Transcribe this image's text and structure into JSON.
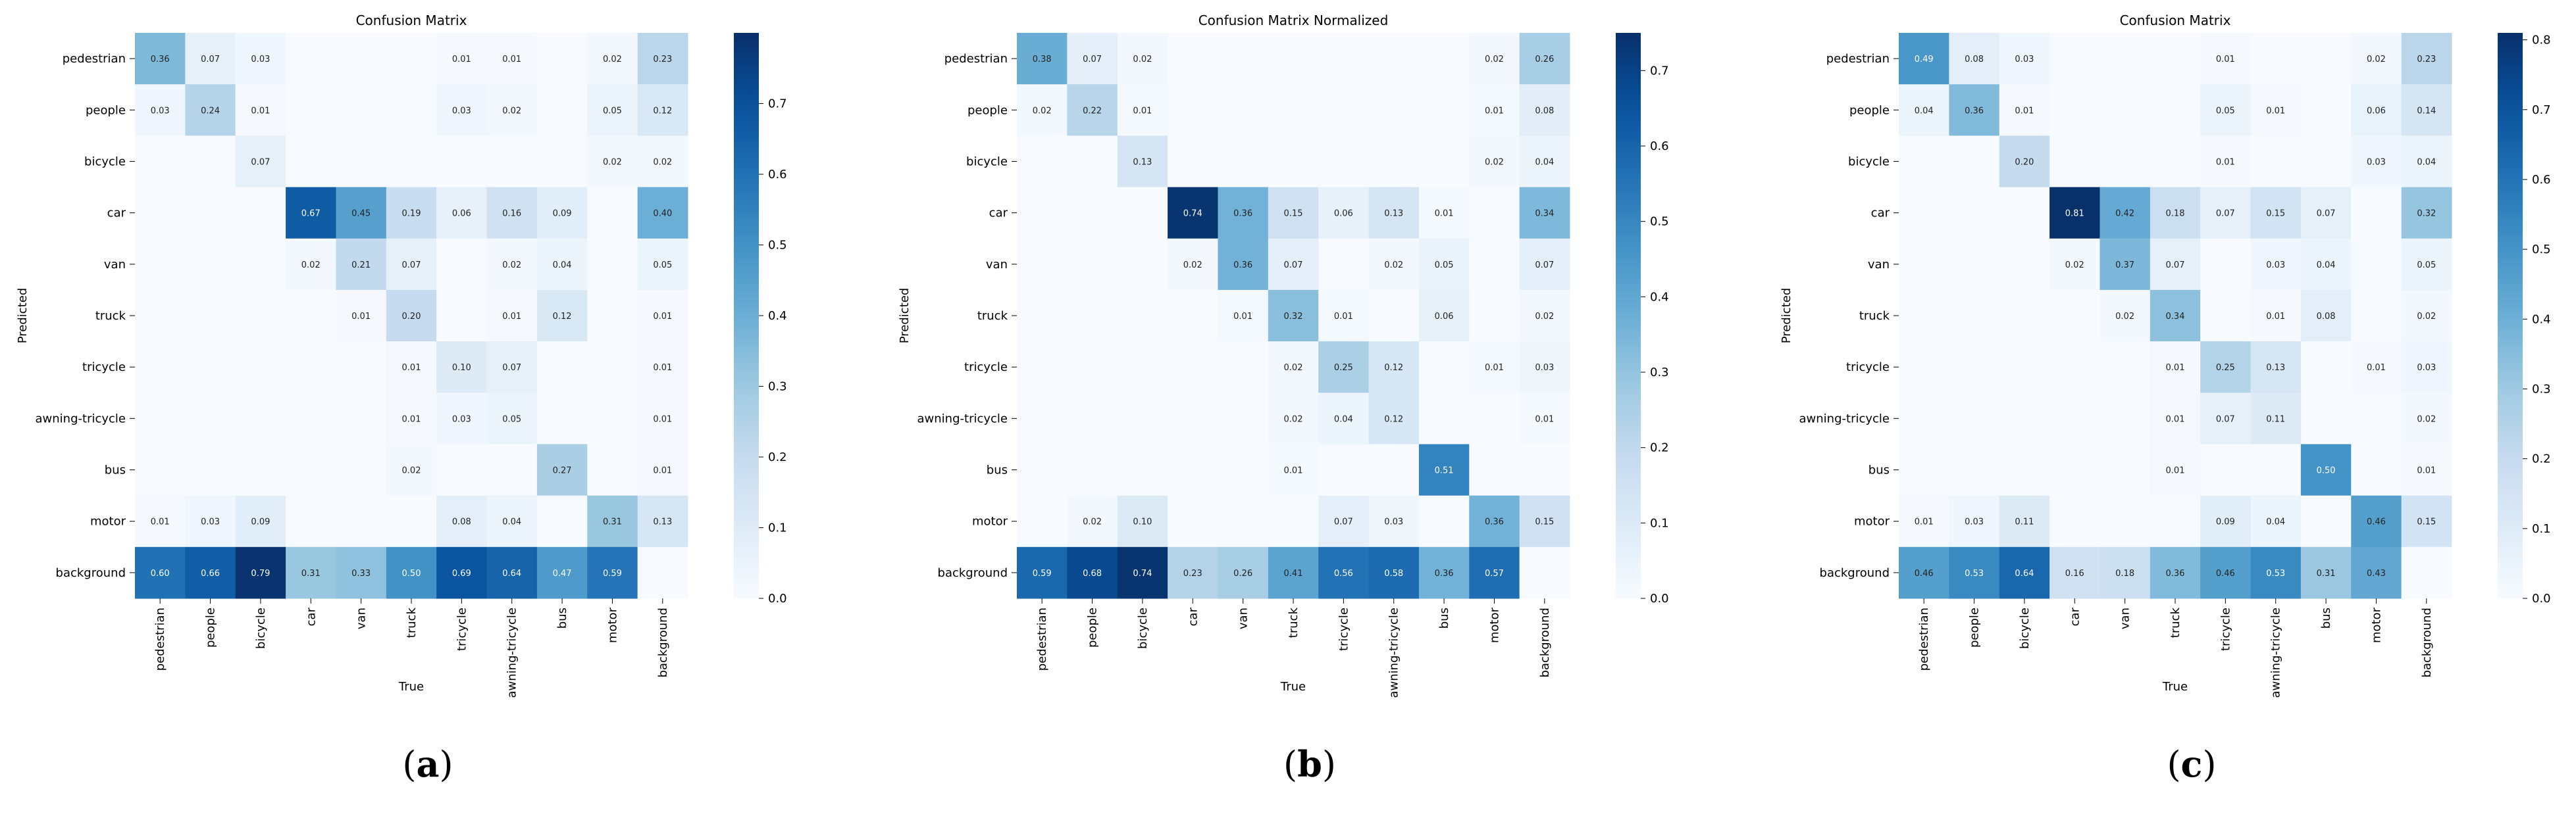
{
  "chart_data": [
    {
      "type": "heatmap",
      "title": "Confusion Matrix",
      "xlabel": "True",
      "ylabel": "Predicted",
      "categories": [
        "pedestrian",
        "people",
        "bicycle",
        "car",
        "van",
        "truck",
        "tricycle",
        "awning-tricycle",
        "bus",
        "motor",
        "background"
      ],
      "colorbar": {
        "min": 0.0,
        "max": 0.8,
        "ticks": [
          0.0,
          0.1,
          0.2,
          0.3,
          0.4,
          0.5,
          0.6,
          0.7
        ],
        "tick_labels": [
          "0.0",
          "0.1",
          "0.2",
          "0.3",
          "0.4",
          "0.5",
          "0.6",
          "0.7"
        ]
      },
      "caption": {
        "open": "(",
        "letter": "a",
        "close": ")"
      },
      "matrix": [
        [
          0.36,
          0.07,
          0.03,
          null,
          null,
          null,
          0.01,
          0.01,
          null,
          0.02,
          0.23
        ],
        [
          0.03,
          0.24,
          0.01,
          null,
          null,
          null,
          0.03,
          0.02,
          null,
          0.05,
          0.12
        ],
        [
          null,
          null,
          0.07,
          null,
          null,
          null,
          null,
          null,
          null,
          0.02,
          0.02
        ],
        [
          null,
          null,
          null,
          0.67,
          0.45,
          0.19,
          0.06,
          0.16,
          0.09,
          null,
          0.4
        ],
        [
          null,
          null,
          null,
          0.02,
          0.21,
          0.07,
          null,
          0.02,
          0.04,
          null,
          0.05
        ],
        [
          null,
          null,
          null,
          null,
          0.01,
          0.2,
          null,
          0.01,
          0.12,
          null,
          0.01
        ],
        [
          null,
          null,
          null,
          null,
          null,
          0.01,
          0.1,
          0.07,
          null,
          null,
          0.01
        ],
        [
          null,
          null,
          null,
          null,
          null,
          0.01,
          0.03,
          0.05,
          null,
          null,
          0.01
        ],
        [
          null,
          null,
          null,
          null,
          null,
          0.02,
          null,
          null,
          0.27,
          null,
          0.01
        ],
        [
          0.01,
          0.03,
          0.09,
          null,
          null,
          null,
          0.08,
          0.04,
          null,
          0.31,
          0.13
        ],
        [
          0.6,
          0.66,
          0.79,
          0.31,
          0.33,
          0.5,
          0.69,
          0.64,
          0.47,
          0.59,
          null
        ]
      ]
    },
    {
      "type": "heatmap",
      "title": "Confusion Matrix Normalized",
      "xlabel": "True",
      "ylabel": "Predicted",
      "categories": [
        "pedestrian",
        "people",
        "bicycle",
        "car",
        "van",
        "truck",
        "tricycle",
        "awning-tricycle",
        "bus",
        "motor",
        "background"
      ],
      "colorbar": {
        "min": 0.0,
        "max": 0.75,
        "ticks": [
          0.0,
          0.1,
          0.2,
          0.3,
          0.4,
          0.5,
          0.6,
          0.7
        ],
        "tick_labels": [
          "0.0",
          "0.1",
          "0.2",
          "0.3",
          "0.4",
          "0.5",
          "0.6",
          "0.7"
        ]
      },
      "caption": {
        "open": "(",
        "letter": "b",
        "close": ")"
      },
      "matrix": [
        [
          0.38,
          0.07,
          0.02,
          null,
          null,
          null,
          null,
          null,
          null,
          0.02,
          0.26
        ],
        [
          0.02,
          0.22,
          0.01,
          null,
          null,
          null,
          null,
          null,
          null,
          0.01,
          0.08
        ],
        [
          null,
          null,
          0.13,
          null,
          null,
          null,
          null,
          null,
          null,
          0.02,
          0.04
        ],
        [
          null,
          null,
          null,
          0.74,
          0.36,
          0.15,
          0.06,
          0.13,
          0.01,
          null,
          0.34
        ],
        [
          null,
          null,
          null,
          0.02,
          0.36,
          0.07,
          null,
          0.02,
          0.05,
          null,
          0.07
        ],
        [
          null,
          null,
          null,
          null,
          0.01,
          0.32,
          0.01,
          null,
          0.06,
          null,
          0.02
        ],
        [
          null,
          null,
          null,
          null,
          null,
          0.02,
          0.25,
          0.12,
          null,
          0.01,
          0.03
        ],
        [
          null,
          null,
          null,
          null,
          null,
          0.02,
          0.04,
          0.12,
          null,
          null,
          0.01
        ],
        [
          null,
          null,
          null,
          null,
          null,
          0.01,
          null,
          null,
          0.51,
          null,
          null
        ],
        [
          null,
          0.02,
          0.1,
          null,
          null,
          null,
          0.07,
          0.03,
          null,
          0.36,
          0.15
        ],
        [
          0.59,
          0.68,
          0.74,
          0.23,
          0.26,
          0.41,
          0.56,
          0.58,
          0.36,
          0.57,
          null
        ]
      ]
    },
    {
      "type": "heatmap",
      "title": "Confusion Matrix",
      "xlabel": "True",
      "ylabel": "Predicted",
      "categories": [
        "pedestrian",
        "people",
        "bicycle",
        "car",
        "van",
        "truck",
        "tricycle",
        "awning-tricycle",
        "bus",
        "motor",
        "background"
      ],
      "colorbar": {
        "min": 0.0,
        "max": 0.81,
        "ticks": [
          0.0,
          0.1,
          0.2,
          0.3,
          0.4,
          0.5,
          0.6,
          0.7,
          0.8
        ],
        "tick_labels": [
          "0.0",
          "0.1",
          "0.2",
          "0.3",
          "0.4",
          "0.5",
          "0.6",
          "0.7",
          "0.8"
        ]
      },
      "caption": {
        "open": "(",
        "letter": "c",
        "close": ")"
      },
      "matrix": [
        [
          0.49,
          0.08,
          0.03,
          null,
          null,
          null,
          0.01,
          null,
          null,
          0.02,
          0.23
        ],
        [
          0.04,
          0.36,
          0.01,
          null,
          null,
          null,
          0.05,
          0.01,
          null,
          0.06,
          0.14
        ],
        [
          null,
          null,
          0.2,
          null,
          null,
          null,
          0.01,
          null,
          null,
          0.03,
          0.04
        ],
        [
          null,
          null,
          null,
          0.81,
          0.42,
          0.18,
          0.07,
          0.15,
          0.07,
          null,
          0.32
        ],
        [
          null,
          null,
          null,
          0.02,
          0.37,
          0.07,
          null,
          0.03,
          0.04,
          null,
          0.05
        ],
        [
          null,
          null,
          null,
          null,
          0.02,
          0.34,
          null,
          0.01,
          0.08,
          null,
          0.02
        ],
        [
          null,
          null,
          null,
          null,
          null,
          0.01,
          0.25,
          0.13,
          null,
          0.01,
          0.03
        ],
        [
          null,
          null,
          null,
          null,
          null,
          0.01,
          0.07,
          0.11,
          null,
          null,
          0.02
        ],
        [
          null,
          null,
          null,
          null,
          null,
          0.01,
          null,
          null,
          0.5,
          null,
          0.01
        ],
        [
          0.01,
          0.03,
          0.11,
          null,
          null,
          null,
          0.09,
          0.04,
          null,
          0.46,
          0.15
        ],
        [
          0.46,
          0.53,
          0.64,
          0.16,
          0.18,
          0.36,
          0.46,
          0.53,
          0.31,
          0.43,
          null
        ]
      ]
    }
  ]
}
